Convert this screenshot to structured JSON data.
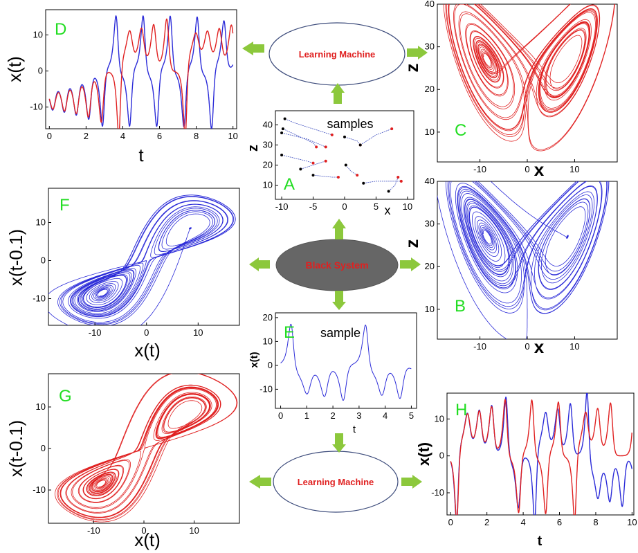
{
  "nodes": {
    "learning_top": "Learning Machine",
    "black_system": "Black System",
    "learning_bottom": "Learning Machine"
  },
  "panels": {
    "A": {
      "letter": "A",
      "title": "samples",
      "xlabel": "x",
      "ylabel": "z",
      "xticks": [
        "-10",
        "-5",
        "0",
        "5",
        "10"
      ],
      "yticks": [
        "10",
        "20",
        "30",
        "40"
      ]
    },
    "B": {
      "letter": "B",
      "xlabel": "x",
      "ylabel": "z",
      "xticks": [
        "-10",
        "0",
        "10"
      ],
      "yticks": [
        "10",
        "20",
        "30",
        "40"
      ]
    },
    "C": {
      "letter": "C",
      "xlabel": "x",
      "ylabel": "z",
      "xticks": [
        "-10",
        "0",
        "10"
      ],
      "yticks": [
        "10",
        "20",
        "30",
        "40"
      ]
    },
    "D": {
      "letter": "D",
      "xlabel": "t",
      "ylabel": "x(t)",
      "xticks": [
        "0",
        "2",
        "4",
        "6",
        "8",
        "10"
      ],
      "yticks": [
        "-10",
        "0",
        "10"
      ]
    },
    "E": {
      "letter": "E",
      "title": "sample",
      "xlabel": "t",
      "ylabel": "x(t)",
      "xticks": [
        "0",
        "1",
        "2",
        "3",
        "4",
        "5"
      ],
      "yticks": [
        "-10",
        "0",
        "10",
        "20"
      ]
    },
    "F": {
      "letter": "F",
      "xlabel": "x(t)",
      "ylabel": "x(t-0.1)",
      "xticks": [
        "-10",
        "0",
        "10"
      ],
      "yticks": [
        "-10",
        "0",
        "10"
      ]
    },
    "G": {
      "letter": "G",
      "xlabel": "x(t)",
      "ylabel": "x(t-0.1)",
      "xticks": [
        "-10",
        "0",
        "10"
      ],
      "yticks": [
        "-10",
        "0",
        "10"
      ]
    },
    "H": {
      "letter": "H",
      "xlabel": "t",
      "ylabel": "x(t)",
      "xticks": [
        "0",
        "2",
        "4",
        "6",
        "8",
        "10"
      ],
      "yticks": [
        "-10",
        "0",
        "10"
      ]
    }
  },
  "colors": {
    "arrow": "#8cc83c",
    "blue": "#2a2ad8",
    "red": "#e02020",
    "label": "#22dd22",
    "node_text": "#e02020",
    "black_fill": "#666666"
  }
}
